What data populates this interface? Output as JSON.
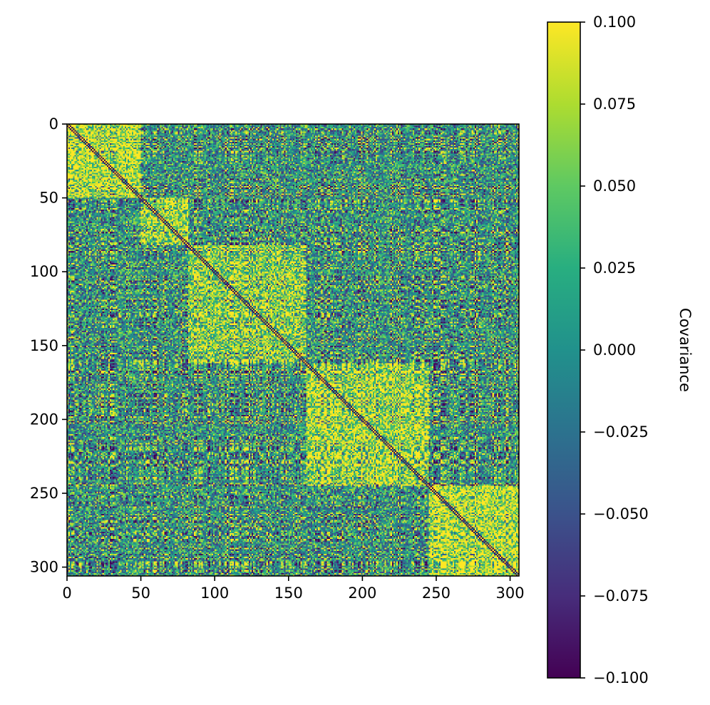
{
  "chart_data": {
    "type": "heatmap",
    "title": "",
    "xlabel": "",
    "ylabel": "",
    "matrix_size": 306,
    "x_range": [
      0,
      306
    ],
    "y_range": [
      0,
      306
    ],
    "y_inverted": true,
    "x_ticks": [
      "0",
      "50",
      "100",
      "150",
      "200",
      "250",
      "300"
    ],
    "x_tick_values": [
      0,
      50,
      100,
      150,
      200,
      250,
      300
    ],
    "y_ticks": [
      "0",
      "50",
      "100",
      "150",
      "200",
      "250",
      "300"
    ],
    "y_tick_values": [
      0,
      50,
      100,
      150,
      200,
      250,
      300
    ],
    "colormap": "viridis",
    "color_range": [
      -0.1,
      0.1
    ],
    "colorbar_label": "Covariance",
    "colorbar_ticks": [
      "0.100",
      "0.075",
      "0.050",
      "0.025",
      "0.000",
      "−0.025",
      "−0.050",
      "−0.075",
      "−0.100"
    ],
    "colorbar_tick_values": [
      0.1,
      0.075,
      0.05,
      0.025,
      0.0,
      -0.025,
      -0.05,
      -0.075,
      -0.1
    ],
    "blocks": [
      {
        "start": 0,
        "end": 50,
        "mean": 0.08
      },
      {
        "start": 50,
        "end": 82,
        "mean": 0.07
      },
      {
        "start": 82,
        "end": 162,
        "mean": 0.06
      },
      {
        "start": 162,
        "end": 245,
        "mean": 0.07
      },
      {
        "start": 245,
        "end": 306,
        "mean": 0.08
      }
    ],
    "off_block_mean": 0.005,
    "diagonal_value": -0.1
  }
}
